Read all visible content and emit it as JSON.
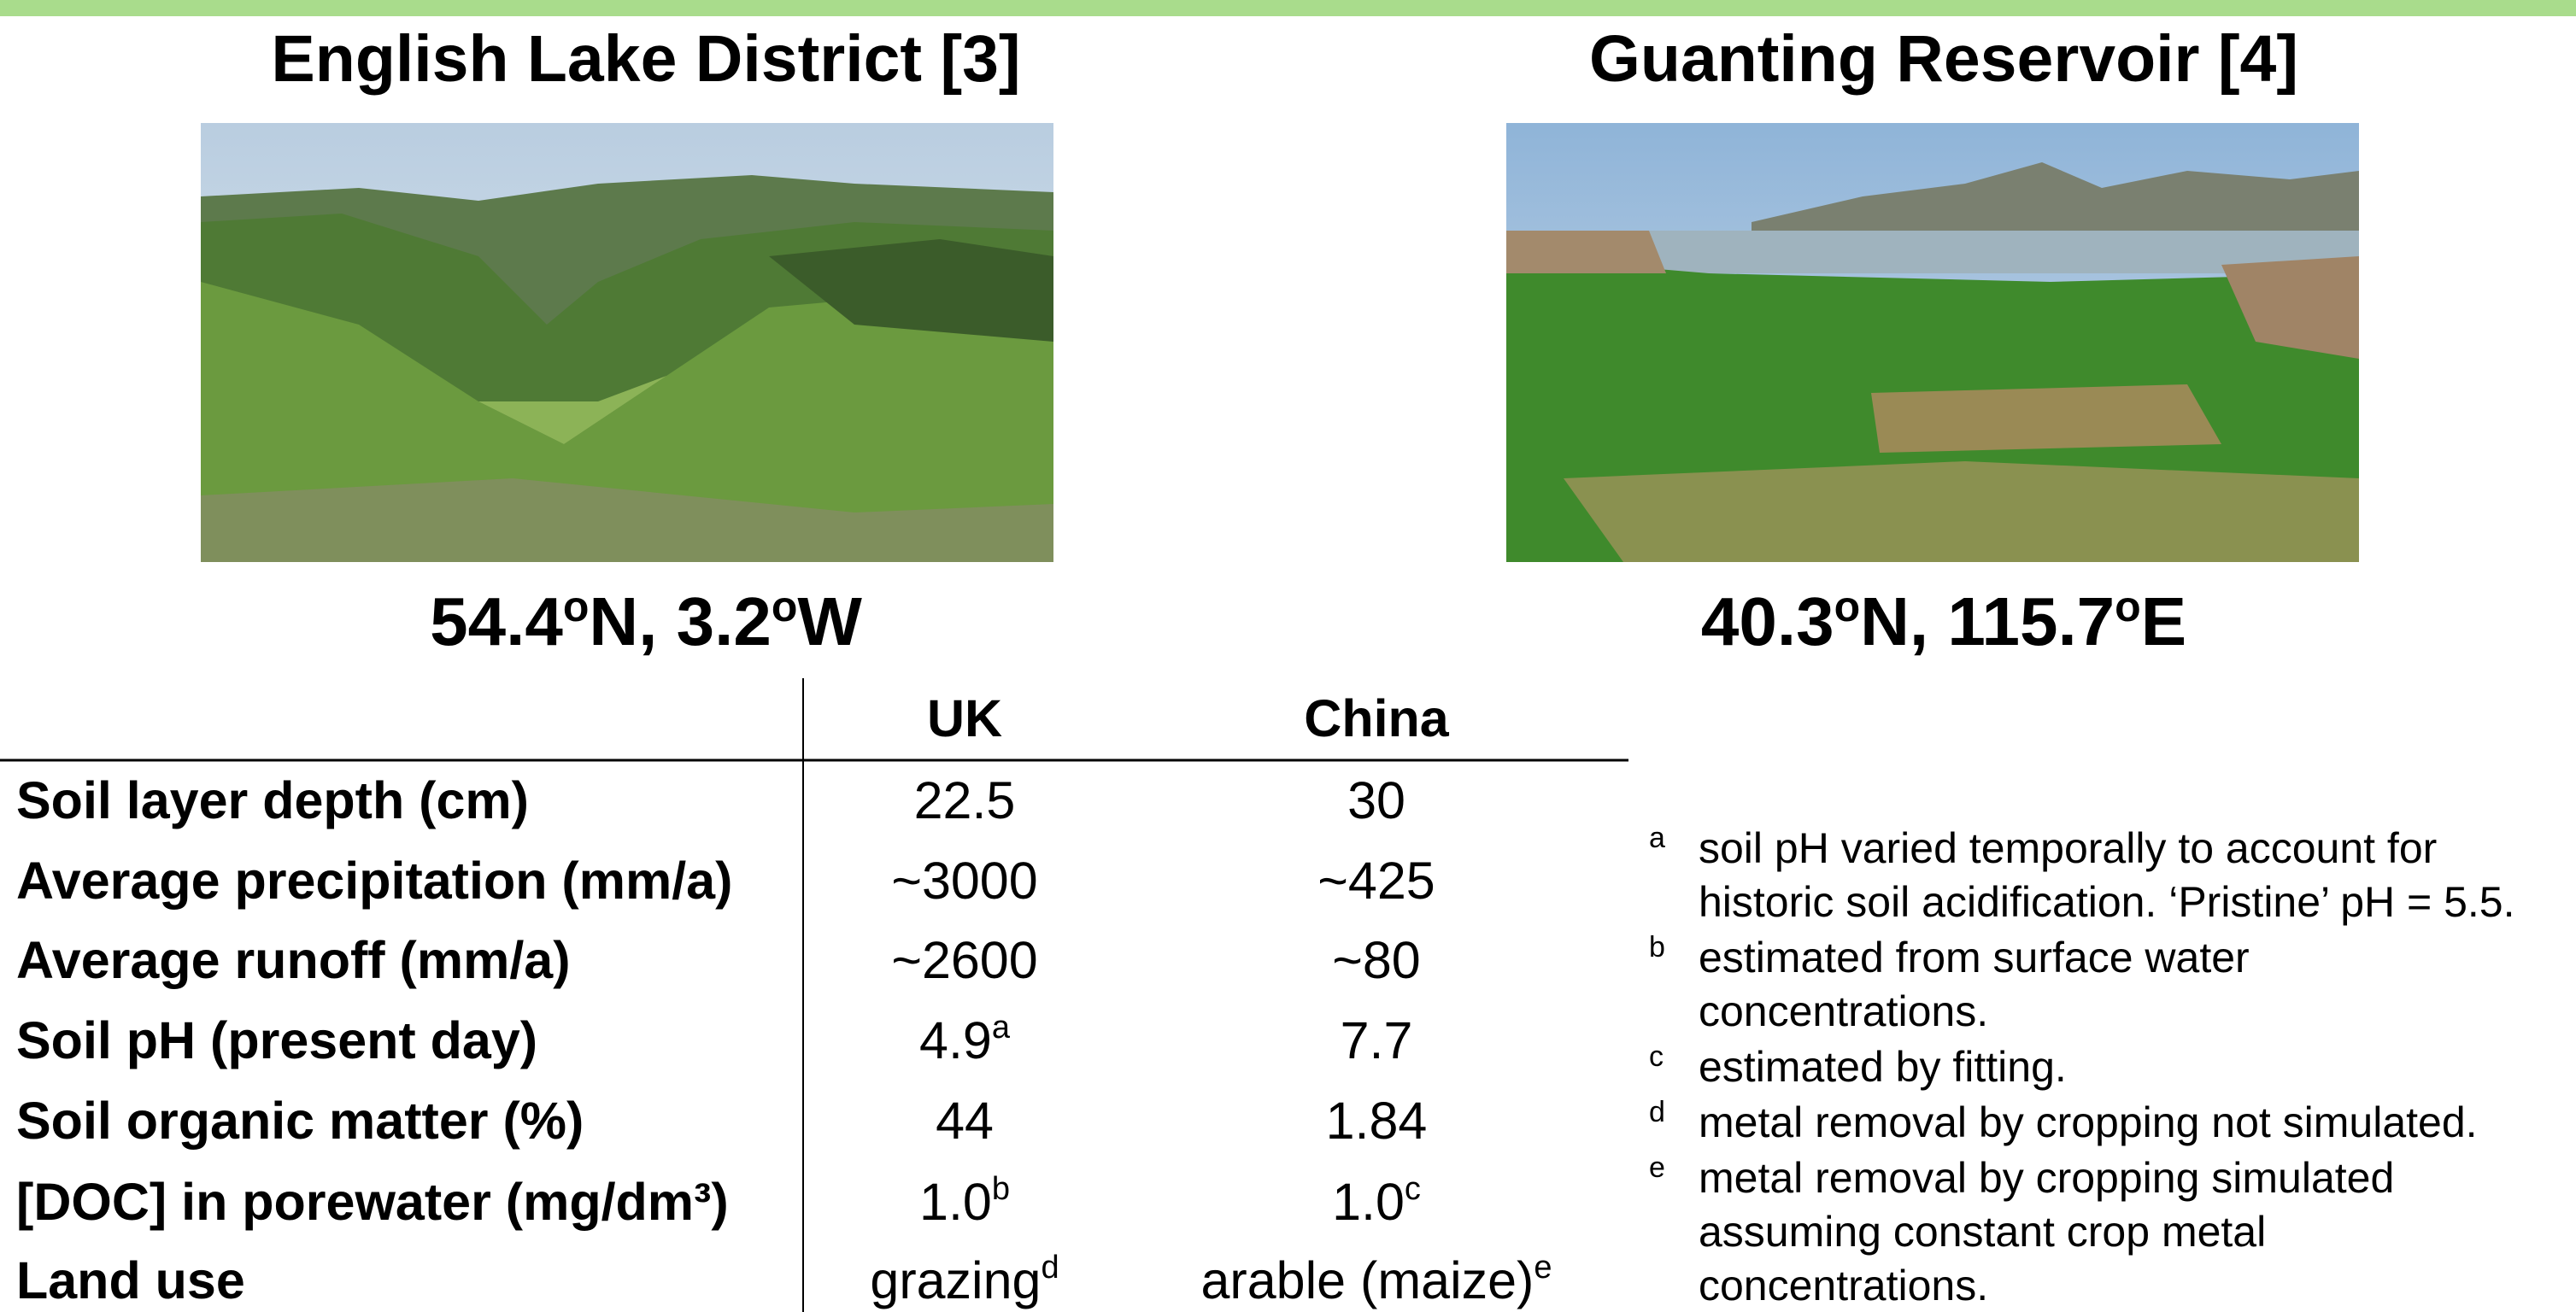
{
  "sites": [
    {
      "title": "English Lake District [3]",
      "coords": [
        "54.4",
        "o",
        "N, 3.2",
        "o",
        "W"
      ]
    },
    {
      "title": "Guanting Reservoir [4]",
      "coords": [
        "40.3",
        "o",
        "N, 115.7",
        "o",
        "E"
      ]
    }
  ],
  "table": {
    "header": [
      "UK",
      "China"
    ],
    "rows": [
      [
        "Soil layer depth (cm)",
        {
          "text": "22.5"
        },
        {
          "text": "30"
        }
      ],
      [
        "Average precipitation (mm/a)",
        {
          "text": "~3000"
        },
        {
          "text": "~425"
        }
      ],
      [
        "Average runoff (mm/a)",
        {
          "text": "~2600"
        },
        {
          "text": "~80"
        }
      ],
      [
        "Soil pH (present day)",
        {
          "text": "4.9",
          "note": "a"
        },
        {
          "text": "7.7"
        }
      ],
      [
        "Soil organic matter (%)",
        {
          "text": "44"
        },
        {
          "text": "1.84"
        }
      ],
      [
        "[DOC] in porewater (mg/dm³)",
        {
          "text": "1.0",
          "note": "b"
        },
        {
          "text": "1.0",
          "note": "c"
        }
      ],
      [
        "Land use",
        {
          "text": "grazing",
          "note": "d"
        },
        {
          "text": "arable (maize)",
          "note": "e"
        }
      ]
    ]
  },
  "footnotes": [
    {
      "mark": "a",
      "lines": [
        "soil pH varied temporally to account for",
        "historic soil acidification. ‘Pristine’ pH = 5.5."
      ]
    },
    {
      "mark": "b",
      "lines": [
        "estimated from surface water",
        "concentrations."
      ]
    },
    {
      "mark": "c",
      "lines": [
        "estimated by fitting."
      ]
    },
    {
      "mark": "d",
      "lines": [
        "metal removal by cropping not simulated."
      ]
    },
    {
      "mark": "e",
      "lines": [
        "metal removal by cropping simulated",
        "assuming constant crop metal",
        "concentrations."
      ]
    }
  ]
}
